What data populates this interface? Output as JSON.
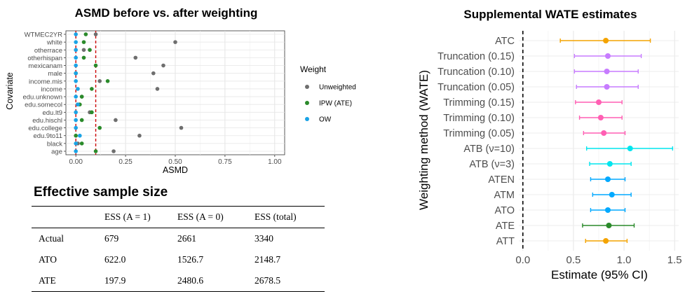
{
  "chart_data": [
    {
      "type": "scatter",
      "title": "ASMD before vs. after weighting",
      "xlabel": "ASMD",
      "ylabel": "Covariate",
      "xlim": [
        -0.05,
        1.05
      ],
      "xticks": [
        "0.00",
        "0.25",
        "0.50",
        "0.75",
        "1.00"
      ],
      "xtick_values": [
        0,
        0.25,
        0.5,
        0.75,
        1.0
      ],
      "reference_lines": [
        {
          "x": 0,
          "color": "#cc0000",
          "style": "dashed"
        },
        {
          "x": 0.1,
          "color": "#cc0000",
          "style": "dashed"
        }
      ],
      "grid": true,
      "legend": {
        "title": "Weight",
        "placement": "right"
      },
      "categories": [
        "WTMEC2YR",
        "white",
        "otherrace",
        "otherhispan",
        "mexicanam",
        "male",
        "income.mis",
        "income",
        "edu.unknown",
        "edu.somecol",
        "edu.lt9",
        "edu.hischl",
        "edu.college",
        "edu.9to11",
        "black",
        "age"
      ],
      "series": [
        {
          "name": "Unweighted",
          "color": "#6e6e6e",
          "values": [
            0.1,
            0.5,
            0.04,
            0.3,
            0.44,
            0.39,
            0.12,
            0.41,
            0.03,
            0.01,
            0.07,
            0.2,
            0.53,
            0.32,
            0.01,
            0.19
          ]
        },
        {
          "name": "IPW (ATE)",
          "color": "#2a8a2a",
          "values": [
            0.05,
            0.04,
            0.07,
            0.04,
            0.1,
            0.0,
            0.16,
            0.08,
            0.03,
            0.02,
            0.08,
            0.03,
            0.12,
            0.0,
            0.03,
            0.1
          ]
        },
        {
          "name": "OW",
          "color": "#1aa3e6",
          "values": [
            0.0,
            0.0,
            0.0,
            0.0,
            0.0,
            0.0,
            0.0,
            0.01,
            0.0,
            0.01,
            0.0,
            0.0,
            0.0,
            0.02,
            0.0,
            0.0
          ]
        }
      ]
    },
    {
      "type": "scatter",
      "title": "Supplemental WATE estimates",
      "xlabel": "Estimate (95% CI)",
      "ylabel": "Weighting method (WATE)",
      "xlim": [
        -0.04,
        1.54
      ],
      "xticks": [
        "0.0",
        "0.5",
        "1.0",
        "1.5"
      ],
      "xtick_values": [
        0,
        0.5,
        1.0,
        1.5
      ],
      "reference_lines": [
        {
          "x": 0,
          "color": "#000000",
          "style": "dashed"
        }
      ],
      "grid": true,
      "categories": [
        "ATC",
        "Truncation (0.15)",
        "Truncation (0.10)",
        "Truncation (0.05)",
        "Trimming (0.15)",
        "Trimming (0.10)",
        "Trimming (0.05)",
        "ATB (ν=10)",
        "ATB (ν=3)",
        "ATEN",
        "ATM",
        "ATO",
        "ATE",
        "ATT"
      ],
      "estimates": [
        0.82,
        0.84,
        0.83,
        0.83,
        0.75,
        0.77,
        0.8,
        1.06,
        0.86,
        0.84,
        0.88,
        0.84,
        0.85,
        0.82
      ],
      "ci_lower": [
        0.37,
        0.51,
        0.51,
        0.53,
        0.52,
        0.56,
        0.6,
        0.63,
        0.66,
        0.67,
        0.69,
        0.67,
        0.59,
        0.62
      ],
      "ci_upper": [
        1.26,
        1.17,
        1.14,
        1.14,
        0.98,
        0.98,
        1.01,
        1.48,
        1.07,
        1.01,
        1.07,
        1.01,
        1.1,
        1.03
      ],
      "colors": [
        "#f4a300",
        "#c77cff",
        "#c77cff",
        "#c77cff",
        "#ff5fb3",
        "#ff5fb3",
        "#ff5fb3",
        "#00e5ee",
        "#00e5ee",
        "#00a9ff",
        "#00a9ff",
        "#00a9ff",
        "#2a8a2a",
        "#f4a300"
      ]
    },
    {
      "type": "table",
      "title": "Effective sample size",
      "columns": [
        "",
        "ESS (A = 1)",
        "ESS (A = 0)",
        "ESS (total)"
      ],
      "rows": [
        [
          "Actual",
          "679",
          "2661",
          "3340"
        ],
        [
          "ATO",
          "622.0",
          "1526.7",
          "2148.7"
        ],
        [
          "ATE",
          "197.9",
          "2480.6",
          "2678.5"
        ]
      ]
    }
  ]
}
